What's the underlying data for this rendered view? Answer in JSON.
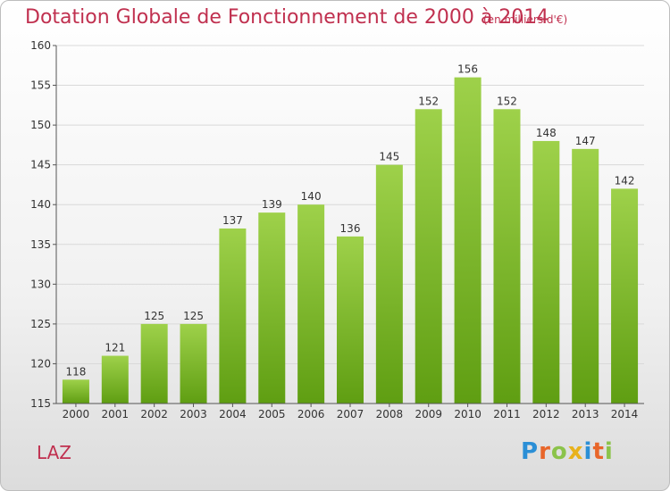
{
  "header": {
    "title": "Dotation Globale de Fonctionnement de 2000 à 2014",
    "subtitle": "(en milliers d'€)"
  },
  "footer": {
    "location": "LAZ",
    "logo_text": "Proxiti"
  },
  "colors": {
    "title": "#c0304f",
    "bar_light": "#9ed14a",
    "bar_dark": "#5f9e12",
    "grid": "#d9d9d9",
    "axis": "#555555"
  },
  "chart_data": {
    "type": "bar",
    "title": "Dotation Globale de Fonctionnement de 2000 à 2014",
    "subtitle": "(en milliers d'€)",
    "categories": [
      "2000",
      "2001",
      "2002",
      "2003",
      "2004",
      "2005",
      "2006",
      "2007",
      "2008",
      "2009",
      "2010",
      "2011",
      "2012",
      "2013",
      "2014"
    ],
    "values": [
      118,
      121,
      125,
      125,
      137,
      139,
      140,
      136,
      145,
      152,
      156,
      152,
      148,
      147,
      142
    ],
    "ylim": [
      115,
      160
    ],
    "yticks": [
      115,
      120,
      125,
      130,
      135,
      140,
      145,
      150,
      155,
      160
    ],
    "grid": true,
    "data_labels": true
  }
}
